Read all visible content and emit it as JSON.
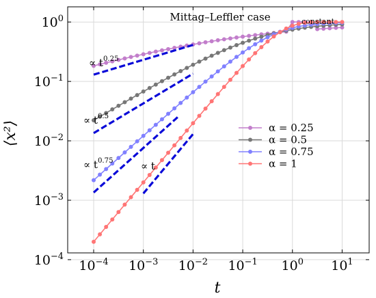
{
  "chart_data": {
    "type": "line",
    "title": "Mittag–Leffler case",
    "xlabel": "t",
    "ylabel": "⟨x²⟩",
    "xscale": "log",
    "yscale": "log",
    "xlim": [
      3e-05,
      35
    ],
    "ylim": [
      0.00013,
      1.8
    ],
    "grid": true,
    "legend_position": "right",
    "x_ticks": [
      {
        "value": 0.0001,
        "base": "10",
        "exp": "−4"
      },
      {
        "value": 0.001,
        "base": "10",
        "exp": "−3"
      },
      {
        "value": 0.01,
        "base": "10",
        "exp": "−2"
      },
      {
        "value": 0.1,
        "base": "10",
        "exp": "−1"
      },
      {
        "value": 1,
        "base": "10",
        "exp": "0"
      },
      {
        "value": 10,
        "base": "10",
        "exp": "1"
      }
    ],
    "y_ticks": [
      {
        "value": 0.0001,
        "base": "10",
        "exp": "−4"
      },
      {
        "value": 0.001,
        "base": "10",
        "exp": "−3"
      },
      {
        "value": 0.01,
        "base": "10",
        "exp": "−2"
      },
      {
        "value": 0.1,
        "base": "10",
        "exp": "−1"
      },
      {
        "value": 1,
        "base": "10",
        "exp": "0"
      }
    ],
    "series": [
      {
        "name": "α = 0.25",
        "alpha": 0.25,
        "color": "#c27ecb"
      },
      {
        "name": "α = 0.5",
        "alpha": 0.5,
        "color": "#777777"
      },
      {
        "name": "α = 0.75",
        "alpha": 0.75,
        "color": "#8080ff"
      },
      {
        "name": "α = 1",
        "alpha": 1,
        "color": "#ff7575"
      }
    ],
    "x_samples": [
      0.0001,
      0.00013335,
      0.00017783,
      0.00023714,
      0.00031623,
      0.0004217,
      0.00056234,
      0.00074989,
      0.001,
      0.0013335,
      0.0017783,
      0.0023714,
      0.0031623,
      0.004217,
      0.0056234,
      0.0074989,
      0.01,
      0.013335,
      0.017783,
      0.023714,
      0.031623,
      0.04217,
      0.056234,
      0.074989,
      0.1,
      0.13335,
      0.17783,
      0.23714,
      0.31623,
      0.4217,
      0.56234,
      0.74989,
      1,
      1.3335,
      1.7783,
      2.3714,
      3.1623,
      4.217,
      5.6234,
      7.4989,
      10
    ],
    "asymptotes": [
      {
        "label_prefix": "∝ t",
        "label_exp": "0.25",
        "exponent": 0.25,
        "x_range": [
          0.0001,
          0.01
        ],
        "y_start": 0.13
      },
      {
        "label_prefix": "∝ t",
        "label_exp": "0.5",
        "exponent": 0.5,
        "x_range": [
          0.0001,
          0.01
        ],
        "y_start": 0.0135
      },
      {
        "label_prefix": "∝ t",
        "label_exp": "0.75",
        "exponent": 0.75,
        "x_range": [
          0.0001,
          0.005
        ],
        "y_start": 0.00135
      },
      {
        "label_prefix": "∝ t",
        "label_exp": "",
        "exponent": 1,
        "x_range": [
          0.001,
          0.01
        ],
        "y_start": 0.0013
      }
    ],
    "asymptote_color": "#0a0ad8",
    "annotations": [
      {
        "text": "constant"
      }
    ]
  }
}
